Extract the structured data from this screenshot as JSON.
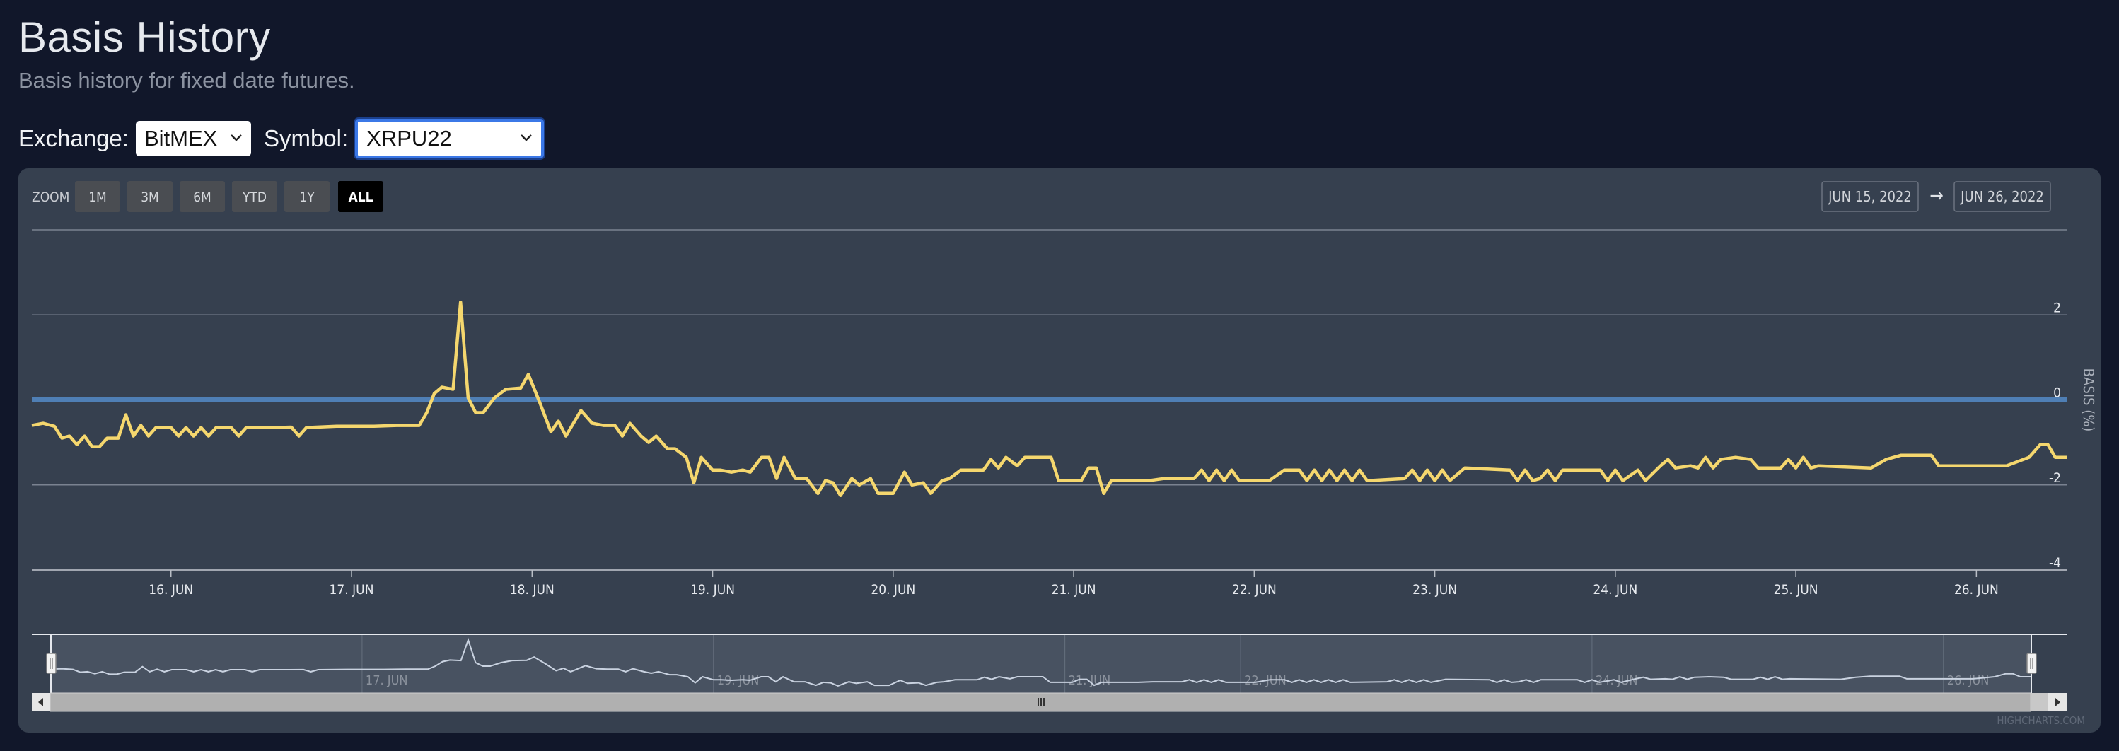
{
  "page": {
    "title": "Basis History",
    "subtitle": "Basis history for fixed date futures."
  },
  "controls": {
    "exchange_label": "Exchange:",
    "exchange_value": "BitMEX",
    "symbol_label": "Symbol:",
    "symbol_value": "XRPU22"
  },
  "range_selector": {
    "zoom_label": "Zoom",
    "buttons": [
      "1m",
      "3m",
      "6m",
      "YTD",
      "1y",
      "All"
    ],
    "active": "All",
    "from": "Jun 15, 2022",
    "to": "Jun 26, 2022",
    "arrow": "→"
  },
  "credits": "Highcharts.com",
  "colors": {
    "page_bg": "#11172a",
    "panel_bg": "#36404f",
    "series": "#f5d76e",
    "zero_line": "#4f7fb5",
    "navigator_line": "#c9d2e0"
  },
  "chart_data": {
    "type": "line",
    "ylabel": "Basis (%)",
    "ylim": [
      -4,
      4
    ],
    "yticks": [
      2,
      0,
      -2,
      -4
    ],
    "xlim": [
      "2022-06-15T05:30",
      "2022-06-26T12:00"
    ],
    "xticks": [
      "16. Jun",
      "17. Jun",
      "18. Jun",
      "19. Jun",
      "20. Jun",
      "21. Jun",
      "22. Jun",
      "23. Jun",
      "24. Jun",
      "25. Jun",
      "26. Jun"
    ],
    "navigator_ticks": [
      "17. Jun",
      "19. Jun",
      "21. Jun",
      "22. Jun",
      "24. Jun",
      "26. Jun"
    ],
    "plot_lines": [
      {
        "value": 0,
        "color": "#4f7fb5"
      }
    ],
    "series": [
      {
        "color": "#f5d76e",
        "points": [
          [
            "2022-06-15T05:30",
            -0.6
          ],
          [
            "2022-06-15T07:00",
            -0.55
          ],
          [
            "2022-06-15T08:30",
            -0.62
          ],
          [
            "2022-06-15T09:30",
            -0.9
          ],
          [
            "2022-06-15T10:30",
            -0.85
          ],
          [
            "2022-06-15T11:30",
            -1.05
          ],
          [
            "2022-06-15T12:30",
            -0.85
          ],
          [
            "2022-06-15T13:30",
            -1.1
          ],
          [
            "2022-06-15T14:30",
            -1.1
          ],
          [
            "2022-06-15T15:30",
            -0.9
          ],
          [
            "2022-06-15T17:00",
            -0.9
          ],
          [
            "2022-06-15T18:00",
            -0.35
          ],
          [
            "2022-06-15T19:00",
            -0.85
          ],
          [
            "2022-06-15T20:00",
            -0.6
          ],
          [
            "2022-06-15T21:00",
            -0.85
          ],
          [
            "2022-06-15T22:00",
            -0.65
          ],
          [
            "2022-06-16T00:00",
            -0.65
          ],
          [
            "2022-06-16T01:00",
            -0.85
          ],
          [
            "2022-06-16T02:00",
            -0.65
          ],
          [
            "2022-06-16T03:00",
            -0.85
          ],
          [
            "2022-06-16T04:00",
            -0.65
          ],
          [
            "2022-06-16T05:00",
            -0.85
          ],
          [
            "2022-06-16T06:00",
            -0.65
          ],
          [
            "2022-06-16T08:00",
            -0.65
          ],
          [
            "2022-06-16T09:00",
            -0.85
          ],
          [
            "2022-06-16T10:00",
            -0.65
          ],
          [
            "2022-06-16T14:00",
            -0.65
          ],
          [
            "2022-06-16T16:00",
            -0.64
          ],
          [
            "2022-06-16T17:00",
            -0.85
          ],
          [
            "2022-06-16T18:00",
            -0.65
          ],
          [
            "2022-06-16T22:00",
            -0.62
          ],
          [
            "2022-06-17T00:00",
            -0.62
          ],
          [
            "2022-06-17T03:00",
            -0.62
          ],
          [
            "2022-06-17T06:00",
            -0.6
          ],
          [
            "2022-06-17T09:00",
            -0.6
          ],
          [
            "2022-06-17T10:00",
            -0.3
          ],
          [
            "2022-06-17T11:00",
            0.15
          ],
          [
            "2022-06-17T12:00",
            0.3
          ],
          [
            "2022-06-17T13:30",
            0.25
          ],
          [
            "2022-06-17T14:30",
            2.3
          ],
          [
            "2022-06-17T15:30",
            0.05
          ],
          [
            "2022-06-17T16:30",
            -0.3
          ],
          [
            "2022-06-17T17:30",
            -0.3
          ],
          [
            "2022-06-17T19:00",
            0.05
          ],
          [
            "2022-06-17T20:30",
            0.25
          ],
          [
            "2022-06-17T22:30",
            0.28
          ],
          [
            "2022-06-17T23:30",
            0.6
          ],
          [
            "2022-06-18T01:00",
            -0.05
          ],
          [
            "2022-06-18T02:30",
            -0.75
          ],
          [
            "2022-06-18T03:30",
            -0.5
          ],
          [
            "2022-06-18T04:30",
            -0.85
          ],
          [
            "2022-06-18T06:30",
            -0.25
          ],
          [
            "2022-06-18T08:00",
            -0.55
          ],
          [
            "2022-06-18T09:30",
            -0.6
          ],
          [
            "2022-06-18T11:00",
            -0.6
          ],
          [
            "2022-06-18T12:00",
            -0.85
          ],
          [
            "2022-06-18T13:00",
            -0.55
          ],
          [
            "2022-06-18T14:30",
            -0.85
          ],
          [
            "2022-06-18T15:30",
            -1.0
          ],
          [
            "2022-06-18T16:30",
            -0.85
          ],
          [
            "2022-06-18T18:00",
            -1.15
          ],
          [
            "2022-06-18T19:00",
            -1.15
          ],
          [
            "2022-06-18T20:30",
            -1.35
          ],
          [
            "2022-06-18T21:30",
            -1.95
          ],
          [
            "2022-06-18T22:30",
            -1.35
          ],
          [
            "2022-06-19T00:00",
            -1.65
          ],
          [
            "2022-06-19T01:00",
            -1.65
          ],
          [
            "2022-06-19T02:30",
            -1.7
          ],
          [
            "2022-06-19T04:00",
            -1.65
          ],
          [
            "2022-06-19T05:00",
            -1.7
          ],
          [
            "2022-06-19T06:30",
            -1.35
          ],
          [
            "2022-06-19T07:30",
            -1.35
          ],
          [
            "2022-06-19T08:30",
            -1.85
          ],
          [
            "2022-06-19T09:30",
            -1.35
          ],
          [
            "2022-06-19T11:00",
            -1.85
          ],
          [
            "2022-06-19T12:30",
            -1.85
          ],
          [
            "2022-06-19T14:00",
            -2.2
          ],
          [
            "2022-06-19T15:00",
            -1.9
          ],
          [
            "2022-06-19T16:00",
            -1.95
          ],
          [
            "2022-06-19T17:00",
            -2.25
          ],
          [
            "2022-06-19T18:30",
            -1.85
          ],
          [
            "2022-06-19T19:30",
            -2.0
          ],
          [
            "2022-06-19T21:00",
            -1.85
          ],
          [
            "2022-06-19T22:00",
            -2.2
          ],
          [
            "2022-06-20T00:00",
            -2.2
          ],
          [
            "2022-06-20T01:30",
            -1.7
          ],
          [
            "2022-06-20T02:30",
            -2.0
          ],
          [
            "2022-06-20T04:00",
            -1.95
          ],
          [
            "2022-06-20T05:00",
            -2.2
          ],
          [
            "2022-06-20T06:30",
            -1.9
          ],
          [
            "2022-06-20T07:30",
            -1.85
          ],
          [
            "2022-06-20T09:00",
            -1.65
          ],
          [
            "2022-06-20T12:00",
            -1.65
          ],
          [
            "2022-06-20T13:00",
            -1.4
          ],
          [
            "2022-06-20T14:00",
            -1.6
          ],
          [
            "2022-06-20T15:00",
            -1.35
          ],
          [
            "2022-06-20T16:30",
            -1.55
          ],
          [
            "2022-06-20T17:30",
            -1.35
          ],
          [
            "2022-06-20T21:00",
            -1.35
          ],
          [
            "2022-06-20T22:00",
            -1.9
          ],
          [
            "2022-06-21T01:00",
            -1.9
          ],
          [
            "2022-06-21T02:00",
            -1.6
          ],
          [
            "2022-06-21T03:00",
            -1.6
          ],
          [
            "2022-06-21T04:00",
            -2.2
          ],
          [
            "2022-06-21T05:00",
            -1.9
          ],
          [
            "2022-06-21T10:00",
            -1.9
          ],
          [
            "2022-06-21T12:00",
            -1.85
          ],
          [
            "2022-06-21T14:00",
            -1.85
          ],
          [
            "2022-06-21T16:00",
            -1.85
          ],
          [
            "2022-06-21T17:00",
            -1.65
          ],
          [
            "2022-06-21T18:00",
            -1.9
          ],
          [
            "2022-06-21T19:00",
            -1.65
          ],
          [
            "2022-06-21T20:00",
            -1.9
          ],
          [
            "2022-06-21T21:00",
            -1.65
          ],
          [
            "2022-06-21T22:00",
            -1.9
          ],
          [
            "2022-06-22T02:00",
            -1.9
          ],
          [
            "2022-06-22T04:00",
            -1.65
          ],
          [
            "2022-06-22T06:00",
            -1.65
          ],
          [
            "2022-06-22T07:00",
            -1.9
          ],
          [
            "2022-06-22T08:00",
            -1.65
          ],
          [
            "2022-06-22T09:00",
            -1.9
          ],
          [
            "2022-06-22T10:00",
            -1.65
          ],
          [
            "2022-06-22T11:00",
            -1.9
          ],
          [
            "2022-06-22T12:00",
            -1.65
          ],
          [
            "2022-06-22T13:00",
            -1.9
          ],
          [
            "2022-06-22T14:00",
            -1.65
          ],
          [
            "2022-06-22T15:00",
            -1.9
          ],
          [
            "2022-06-22T20:00",
            -1.85
          ],
          [
            "2022-06-22T21:00",
            -1.65
          ],
          [
            "2022-06-22T22:00",
            -1.9
          ],
          [
            "2022-06-22T23:00",
            -1.65
          ],
          [
            "2022-06-23T00:00",
            -1.9
          ],
          [
            "2022-06-23T01:00",
            -1.65
          ],
          [
            "2022-06-23T02:00",
            -1.9
          ],
          [
            "2022-06-23T04:00",
            -1.6
          ],
          [
            "2022-06-23T10:00",
            -1.65
          ],
          [
            "2022-06-23T11:00",
            -1.9
          ],
          [
            "2022-06-23T12:00",
            -1.65
          ],
          [
            "2022-06-23T13:00",
            -1.9
          ],
          [
            "2022-06-23T14:00",
            -1.85
          ],
          [
            "2022-06-23T15:00",
            -1.65
          ],
          [
            "2022-06-23T16:00",
            -1.9
          ],
          [
            "2022-06-23T17:00",
            -1.65
          ],
          [
            "2022-06-23T22:00",
            -1.65
          ],
          [
            "2022-06-23T23:00",
            -1.9
          ],
          [
            "2022-06-24T00:00",
            -1.65
          ],
          [
            "2022-06-24T01:00",
            -1.9
          ],
          [
            "2022-06-24T03:00",
            -1.65
          ],
          [
            "2022-06-24T04:00",
            -1.9
          ],
          [
            "2022-06-24T06:00",
            -1.55
          ],
          [
            "2022-06-24T07:00",
            -1.4
          ],
          [
            "2022-06-24T08:00",
            -1.6
          ],
          [
            "2022-06-24T10:00",
            -1.55
          ],
          [
            "2022-06-24T11:00",
            -1.6
          ],
          [
            "2022-06-24T12:00",
            -1.35
          ],
          [
            "2022-06-24T13:00",
            -1.6
          ],
          [
            "2022-06-24T14:00",
            -1.4
          ],
          [
            "2022-06-24T16:00",
            -1.35
          ],
          [
            "2022-06-24T18:00",
            -1.4
          ],
          [
            "2022-06-24T19:00",
            -1.6
          ],
          [
            "2022-06-24T22:00",
            -1.6
          ],
          [
            "2022-06-24T23:00",
            -1.4
          ],
          [
            "2022-06-25T00:00",
            -1.6
          ],
          [
            "2022-06-25T01:00",
            -1.35
          ],
          [
            "2022-06-25T02:00",
            -1.6
          ],
          [
            "2022-06-25T03:00",
            -1.55
          ],
          [
            "2022-06-25T10:00",
            -1.6
          ],
          [
            "2022-06-25T12:00",
            -1.4
          ],
          [
            "2022-06-25T14:00",
            -1.3
          ],
          [
            "2022-06-25T18:00",
            -1.3
          ],
          [
            "2022-06-25T19:00",
            -1.55
          ],
          [
            "2022-06-26T00:00",
            -1.55
          ],
          [
            "2022-06-26T04:00",
            -1.55
          ],
          [
            "2022-06-26T07:00",
            -1.35
          ],
          [
            "2022-06-26T08:30",
            -1.05
          ],
          [
            "2022-06-26T09:30",
            -1.05
          ],
          [
            "2022-06-26T10:30",
            -1.35
          ],
          [
            "2022-06-26T12:00",
            -1.35
          ]
        ]
      }
    ]
  }
}
